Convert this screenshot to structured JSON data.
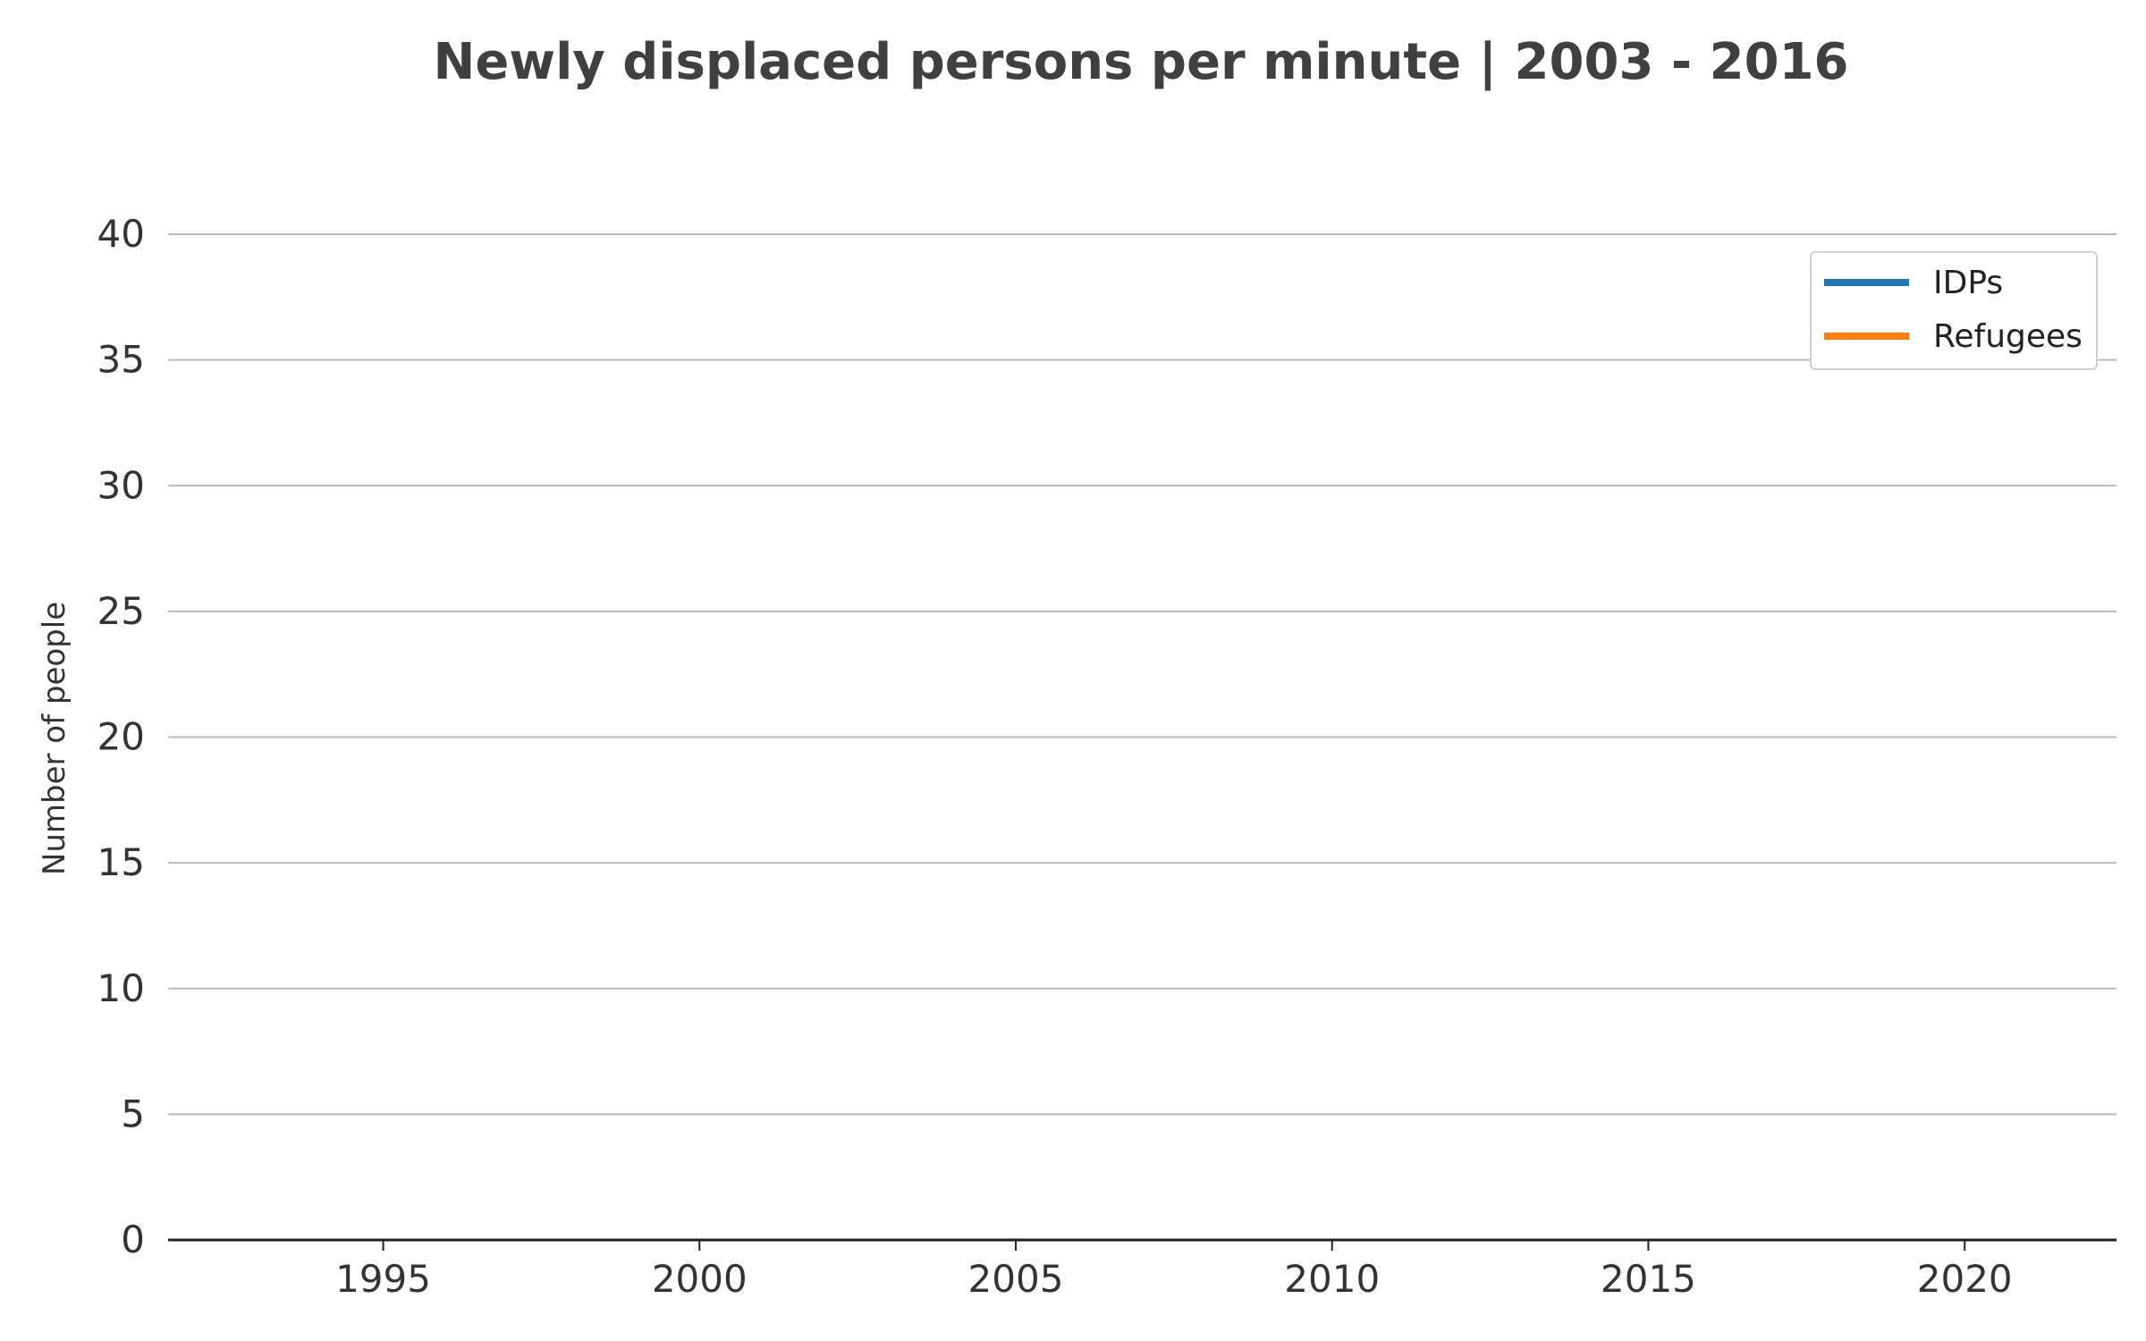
{
  "chart_data": {
    "type": "line",
    "title": "Newly displaced persons per minute | 2003 - 2016",
    "xlabel": "",
    "ylabel": "Number of people",
    "xlim": [
      1991.6,
      2022.4
    ],
    "ylim": [
      0,
      40
    ],
    "x_ticks": [
      "1995",
      "2000",
      "2005",
      "2010",
      "2015",
      "2020"
    ],
    "y_ticks": [
      "0",
      "5",
      "10",
      "15",
      "20",
      "25",
      "30",
      "35",
      "40"
    ],
    "grid": "horizontal",
    "legend_position": "top-right",
    "series": [
      {
        "name": "IDPs",
        "color": "#1f77b4",
        "x": [],
        "y": []
      },
      {
        "name": "Refugees",
        "color": "#ff7f0e",
        "x": [],
        "y": []
      }
    ]
  }
}
